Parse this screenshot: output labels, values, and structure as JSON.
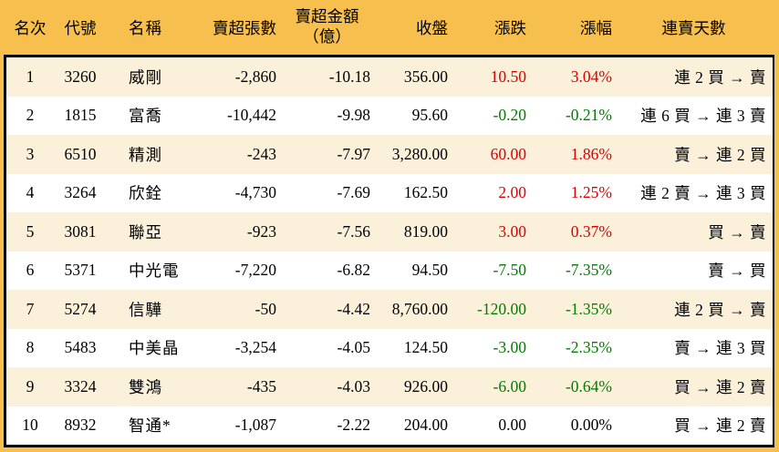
{
  "chart_data": {
    "type": "table",
    "header": {
      "rank": "名次",
      "code": "代號",
      "name": "名稱",
      "sell_volume": "賣超張數",
      "sell_amount_line1": "賣超金額",
      "sell_amount_line2": "（億）",
      "close": "收盤",
      "change": "漲跌",
      "change_pct": "漲幅",
      "streak": "連賣天數"
    },
    "rows": [
      {
        "rank": "1",
        "code": "3260",
        "name": "威剛",
        "sell_volume": "-2,860",
        "sell_amount": "-10.18",
        "close": "356.00",
        "change": "10.50",
        "change_pct": "3.04%",
        "streak": "連 2 買 → 賣",
        "trend": "up"
      },
      {
        "rank": "2",
        "code": "1815",
        "name": "富喬",
        "sell_volume": "-10,442",
        "sell_amount": "-9.98",
        "close": "95.60",
        "change": "-0.20",
        "change_pct": "-0.21%",
        "streak": "連 6 買 → 連 3 賣",
        "trend": "down"
      },
      {
        "rank": "3",
        "code": "6510",
        "name": "精測",
        "sell_volume": "-243",
        "sell_amount": "-7.97",
        "close": "3,280.00",
        "change": "60.00",
        "change_pct": "1.86%",
        "streak": "賣 → 連 2 買",
        "trend": "up"
      },
      {
        "rank": "4",
        "code": "3264",
        "name": "欣銓",
        "sell_volume": "-4,730",
        "sell_amount": "-7.69",
        "close": "162.50",
        "change": "2.00",
        "change_pct": "1.25%",
        "streak": "連 2 賣 → 連 3 買",
        "trend": "up"
      },
      {
        "rank": "5",
        "code": "3081",
        "name": "聯亞",
        "sell_volume": "-923",
        "sell_amount": "-7.56",
        "close": "819.00",
        "change": "3.00",
        "change_pct": "0.37%",
        "streak": "買 → 賣",
        "trend": "up"
      },
      {
        "rank": "6",
        "code": "5371",
        "name": "中光電",
        "sell_volume": "-7,220",
        "sell_amount": "-6.82",
        "close": "94.50",
        "change": "-7.50",
        "change_pct": "-7.35%",
        "streak": "賣 → 買",
        "trend": "down"
      },
      {
        "rank": "7",
        "code": "5274",
        "name": "信驊",
        "sell_volume": "-50",
        "sell_amount": "-4.42",
        "close": "8,760.00",
        "change": "-120.00",
        "change_pct": "-1.35%",
        "streak": "連 2 買 → 賣",
        "trend": "down"
      },
      {
        "rank": "8",
        "code": "5483",
        "name": "中美晶",
        "sell_volume": "-3,254",
        "sell_amount": "-4.05",
        "close": "124.50",
        "change": "-3.00",
        "change_pct": "-2.35%",
        "streak": "賣 → 連 3 買",
        "trend": "down"
      },
      {
        "rank": "9",
        "code": "3324",
        "name": "雙鴻",
        "sell_volume": "-435",
        "sell_amount": "-4.03",
        "close": "926.00",
        "change": "-6.00",
        "change_pct": "-0.64%",
        "streak": "買 → 連 2 賣",
        "trend": "down"
      },
      {
        "rank": "10",
        "code": "8932",
        "name": "智通*",
        "sell_volume": "-1,087",
        "sell_amount": "-2.22",
        "close": "204.00",
        "change": "0.00",
        "change_pct": "0.00%",
        "streak": "買 → 連 2 賣",
        "trend": "flat"
      }
    ]
  },
  "colors": {
    "header_bg": "#F7C04E",
    "row_stripe_bg": "#FBF1DB",
    "row_bg": "#FFFFFF",
    "up_text": "#DE0000",
    "down_text": "#007C00",
    "flat_text": "#000000",
    "border": "#000000",
    "text": "#000000"
  }
}
